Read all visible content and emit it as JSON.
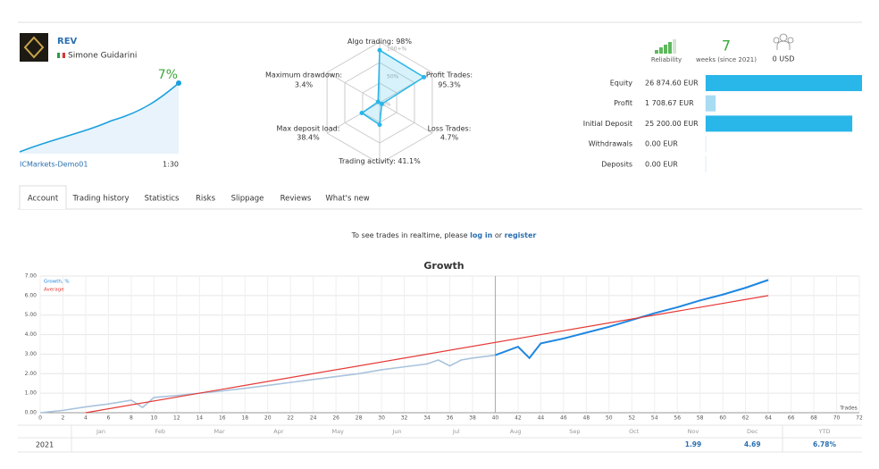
{
  "header": {
    "name": "REV",
    "author": "Simone Guidarini",
    "growth": "7%",
    "account": "ICMarkets-Demo01",
    "leverage": "1:30"
  },
  "radar": {
    "ring_labels": [
      "100+%",
      "50%",
      "0%"
    ],
    "axes": [
      {
        "name": "Algo trading:",
        "value": 98,
        "value_label": "98%"
      },
      {
        "name": "Profit Trades:",
        "value": 95.3,
        "value_label": "95.3%"
      },
      {
        "name": "Loss Trades:",
        "value": 4.7,
        "value_label": "4.7%"
      },
      {
        "name": "Trading activity:",
        "value": 41.1,
        "value_label": "41.1%"
      },
      {
        "name": "Max deposit load:",
        "value": 38.4,
        "value_label": "38.4%"
      },
      {
        "name": "Maximum drawdown:",
        "value": 3.4,
        "value_label": "3.4%"
      }
    ]
  },
  "stats": {
    "reliability": "Reliability",
    "weeks": "7",
    "weeks_label": "weeks (since 2021)",
    "subscribers": "0 USD"
  },
  "balance": {
    "rows": [
      {
        "label": "Equity",
        "value": 26874.6,
        "value_label": "26 874.60 EUR",
        "color": "#29b6e8"
      },
      {
        "label": "Profit",
        "value": 1708.67,
        "value_label": "1 708.67 EUR",
        "color": "#a8dcf2"
      },
      {
        "label": "Initial Deposit",
        "value": 25200,
        "value_label": "25 200.00 EUR",
        "color": "#29b6e8"
      },
      {
        "label": "Withdrawals",
        "value": 0,
        "value_label": "0.00 EUR",
        "color": "#29b6e8"
      },
      {
        "label": "Deposits",
        "value": 0,
        "value_label": "0.00 EUR",
        "color": "#29b6e8"
      }
    ]
  },
  "tabs": [
    "Account",
    "Trading history",
    "Statistics",
    "Risks",
    "Slippage",
    "Reviews",
    "What's new"
  ],
  "notice": {
    "text": "To see trades in realtime, please",
    "login": "log in",
    "or": "or",
    "register": "register"
  },
  "chart_data": {
    "type": "line",
    "title": "Growth",
    "xlabel": "Trades",
    "xlim": [
      0,
      72
    ],
    "xticks": [
      0,
      2,
      4,
      6,
      8,
      10,
      12,
      14,
      16,
      18,
      20,
      22,
      24,
      26,
      28,
      30,
      32,
      34,
      36,
      38,
      40,
      42,
      44,
      46,
      48,
      50,
      52,
      54,
      56,
      58,
      60,
      62,
      64,
      66,
      68,
      70,
      72
    ],
    "ylim": [
      0,
      7
    ],
    "yticks": [
      {
        "value": 0,
        "label": "0.00"
      },
      {
        "value": 1,
        "label": "1.00"
      },
      {
        "value": 2,
        "label": "2.00"
      },
      {
        "value": 3,
        "label": "3.00"
      },
      {
        "value": 4,
        "label": "4.00"
      },
      {
        "value": 5,
        "label": "5.00"
      },
      {
        "value": 6,
        "label": "6.00"
      },
      {
        "value": 7,
        "label": "7.00"
      }
    ],
    "grid": true,
    "divider_x": 40,
    "series": [
      {
        "name": "Growth, %",
        "color": "#1f86e0",
        "faded_color": "#a9c3dd",
        "x": [
          0,
          2,
          4,
          6,
          8,
          9,
          10,
          12,
          14,
          16,
          18,
          20,
          22,
          24,
          26,
          28,
          30,
          32,
          34,
          35,
          36,
          37,
          38,
          40,
          42,
          43,
          44,
          46,
          48,
          50,
          52,
          54,
          56,
          58,
          60,
          62,
          64
        ],
        "values": [
          0,
          0.12,
          0.3,
          0.45,
          0.64,
          0.27,
          0.78,
          0.88,
          1.0,
          1.12,
          1.25,
          1.4,
          1.55,
          1.7,
          1.85,
          2.0,
          2.2,
          2.35,
          2.5,
          2.7,
          2.4,
          2.7,
          2.8,
          2.95,
          3.38,
          2.8,
          3.55,
          3.8,
          4.1,
          4.4,
          4.75,
          5.1,
          5.4,
          5.75,
          6.05,
          6.4,
          6.8
        ]
      },
      {
        "name": "Average",
        "color": "#e53935",
        "x": [
          4,
          64
        ],
        "values": [
          0,
          6
        ]
      }
    ]
  },
  "year_table": {
    "year": "2021",
    "columns": [
      "Jan",
      "Feb",
      "Mar",
      "Apr",
      "May",
      "Jun",
      "Jul",
      "Aug",
      "Sep",
      "Oct",
      "Nov",
      "Dec",
      "YTD"
    ],
    "values": [
      null,
      null,
      null,
      null,
      null,
      null,
      null,
      null,
      null,
      null,
      1.99,
      4.69,
      6.78
    ],
    "value_labels": [
      null,
      null,
      null,
      null,
      null,
      null,
      null,
      null,
      null,
      null,
      null,
      null,
      "6.78%"
    ]
  }
}
